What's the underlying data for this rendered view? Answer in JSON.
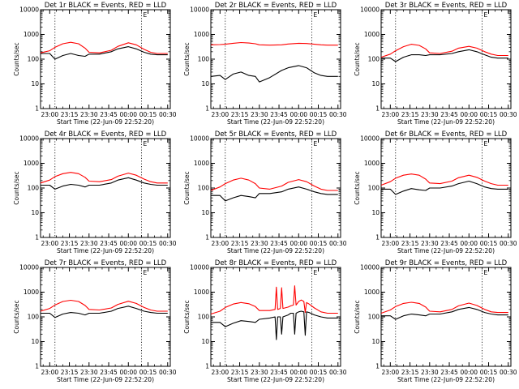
{
  "figure": {
    "common": {
      "xlabel": "Start Time (22-Jun-09 22:52:20)",
      "ylabel": "Counts/sec",
      "x_tick_labels": [
        "23:00",
        "23:15",
        "23:30",
        "23:45",
        "00:00",
        "00:15",
        "00:30"
      ],
      "y_tick_labels": [
        "1",
        "10",
        "100",
        "1000",
        "10000"
      ],
      "marker_label": "E",
      "colors": {
        "events": "#000000",
        "lld": "#ff0000",
        "background": "#ffffff",
        "axes": "#000000"
      }
    }
  },
  "chart_data": [
    {
      "type": "line",
      "title": "Det 1r BLACK = Events, RED = LLD",
      "xlabel": "Start Time (22-Jun-09 22:52:20)",
      "ylabel": "Counts/sec",
      "x_minutes_from_2300": [
        -7,
        0,
        4,
        10,
        16,
        22,
        27,
        30,
        38,
        47,
        52,
        60,
        66,
        72,
        77,
        82,
        90
      ],
      "xlim_minutes_from_2300": [
        -7,
        92
      ],
      "ylim": [
        1,
        10000
      ],
      "y_scale": "log",
      "vertical_markers_minutes_from_2300": [
        4,
        70
      ],
      "series": [
        {
          "name": "Events",
          "color": "#000000",
          "y": [
            170,
            170,
            100,
            140,
            170,
            140,
            130,
            160,
            160,
            200,
            260,
            320,
            260,
            190,
            160,
            150,
            150
          ]
        },
        {
          "name": "LLD",
          "color": "#ff0000",
          "y": [
            180,
            220,
            300,
            420,
            480,
            420,
            280,
            190,
            180,
            230,
            330,
            460,
            380,
            250,
            190,
            170,
            170
          ]
        }
      ]
    },
    {
      "type": "line",
      "title": "Det 2r BLACK = Events, RED = LLD",
      "xlabel": "Start Time (22-Jun-09 22:52:20)",
      "ylabel": "Counts/sec",
      "x_minutes_from_2300": [
        -7,
        0,
        4,
        10,
        16,
        22,
        27,
        30,
        38,
        47,
        52,
        60,
        66,
        72,
        77,
        82,
        90
      ],
      "xlim_minutes_from_2300": [
        -7,
        92
      ],
      "ylim": [
        1,
        10000
      ],
      "y_scale": "log",
      "vertical_markers_minutes_from_2300": [
        4,
        70
      ],
      "series": [
        {
          "name": "Events",
          "color": "#000000",
          "y": [
            20,
            22,
            15,
            25,
            30,
            22,
            20,
            12,
            18,
            35,
            45,
            55,
            45,
            28,
            22,
            20,
            20
          ]
        },
        {
          "name": "LLD",
          "color": "#ff0000",
          "y": [
            380,
            390,
            400,
            440,
            470,
            450,
            420,
            380,
            370,
            380,
            410,
            440,
            430,
            400,
            380,
            370,
            370
          ]
        }
      ]
    },
    {
      "type": "line",
      "title": "Det 3r BLACK = Events, RED = LLD",
      "xlabel": "Start Time (22-Jun-09 22:52:20)",
      "ylabel": "Counts/sec",
      "x_minutes_from_2300": [
        -7,
        0,
        4,
        10,
        16,
        22,
        27,
        30,
        38,
        47,
        52,
        60,
        66,
        72,
        77,
        82,
        90
      ],
      "xlim_minutes_from_2300": [
        -7,
        92
      ],
      "ylim": [
        1,
        10000
      ],
      "y_scale": "log",
      "vertical_markers_minutes_from_2300": [
        4,
        70
      ],
      "series": [
        {
          "name": "Events",
          "color": "#000000",
          "y": [
            110,
            110,
            80,
            120,
            150,
            150,
            140,
            150,
            150,
            170,
            200,
            240,
            200,
            150,
            120,
            110,
            110
          ]
        },
        {
          "name": "LLD",
          "color": "#ff0000",
          "y": [
            120,
            160,
            220,
            320,
            400,
            360,
            260,
            180,
            170,
            210,
            280,
            330,
            280,
            200,
            160,
            140,
            140
          ]
        }
      ]
    },
    {
      "type": "line",
      "title": "Det 4r BLACK = Events, RED = LLD",
      "xlabel": "Start Time (22-Jun-09 22:52:20)",
      "ylabel": "Counts/sec",
      "x_minutes_from_2300": [
        -7,
        0,
        4,
        10,
        16,
        22,
        27,
        30,
        38,
        47,
        52,
        60,
        66,
        72,
        77,
        82,
        90
      ],
      "xlim_minutes_from_2300": [
        -7,
        92
      ],
      "ylim": [
        1,
        10000
      ],
      "y_scale": "log",
      "vertical_markers_minutes_from_2300": [
        4,
        70
      ],
      "series": [
        {
          "name": "Events",
          "color": "#000000",
          "y": [
            130,
            130,
            90,
            120,
            140,
            130,
            110,
            130,
            130,
            160,
            210,
            260,
            210,
            160,
            140,
            130,
            130
          ]
        },
        {
          "name": "LLD",
          "color": "#ff0000",
          "y": [
            160,
            210,
            290,
            380,
            430,
            380,
            270,
            190,
            180,
            220,
            300,
            400,
            330,
            230,
            180,
            160,
            160
          ]
        }
      ]
    },
    {
      "type": "line",
      "title": "Det 5r BLACK = Events, RED = LLD",
      "xlabel": "Start Time (22-Jun-09 22:52:20)",
      "ylabel": "Counts/sec",
      "x_minutes_from_2300": [
        -7,
        0,
        4,
        10,
        16,
        22,
        27,
        30,
        38,
        47,
        52,
        60,
        66,
        72,
        77,
        82,
        90
      ],
      "xlim_minutes_from_2300": [
        -7,
        92
      ],
      "ylim": [
        1,
        10000
      ],
      "y_scale": "log",
      "vertical_markers_minutes_from_2300": [
        4,
        70
      ],
      "series": [
        {
          "name": "Events",
          "color": "#000000",
          "y": [
            50,
            50,
            30,
            40,
            50,
            45,
            40,
            60,
            60,
            70,
            90,
            110,
            90,
            70,
            60,
            55,
            55
          ]
        },
        {
          "name": "LLD",
          "color": "#ff0000",
          "y": [
            80,
            110,
            150,
            210,
            250,
            210,
            150,
            100,
            90,
            120,
            170,
            220,
            180,
            120,
            90,
            80,
            80
          ]
        }
      ]
    },
    {
      "type": "line",
      "title": "Det 6r BLACK = Events, RED = LLD",
      "xlabel": "Start Time (22-Jun-09 22:52:20)",
      "ylabel": "Counts/sec",
      "x_minutes_from_2300": [
        -7,
        0,
        4,
        10,
        16,
        22,
        27,
        30,
        38,
        47,
        52,
        60,
        66,
        72,
        77,
        82,
        90
      ],
      "xlim_minutes_from_2300": [
        -7,
        92
      ],
      "ylim": [
        1,
        10000
      ],
      "y_scale": "log",
      "vertical_markers_minutes_from_2300": [
        4,
        70
      ],
      "series": [
        {
          "name": "Events",
          "color": "#000000",
          "y": [
            90,
            90,
            55,
            75,
            95,
            85,
            80,
            100,
            100,
            120,
            150,
            190,
            150,
            110,
            95,
            90,
            90
          ]
        },
        {
          "name": "LLD",
          "color": "#ff0000",
          "y": [
            130,
            180,
            250,
            330,
            370,
            330,
            230,
            160,
            150,
            190,
            260,
            330,
            270,
            190,
            150,
            130,
            130
          ]
        }
      ]
    },
    {
      "type": "line",
      "title": "Det 7r BLACK = Events, RED = LLD",
      "xlabel": "Start Time (22-Jun-09 22:52:20)",
      "ylabel": "Counts/sec",
      "x_minutes_from_2300": [
        -7,
        0,
        4,
        10,
        16,
        22,
        27,
        30,
        38,
        47,
        52,
        60,
        66,
        72,
        77,
        82,
        90
      ],
      "xlim_minutes_from_2300": [
        -7,
        92
      ],
      "ylim": [
        1,
        10000
      ],
      "y_scale": "log",
      "vertical_markers_minutes_from_2300": [
        4,
        70
      ],
      "series": [
        {
          "name": "Events",
          "color": "#000000",
          "y": [
            140,
            140,
            95,
            130,
            150,
            140,
            120,
            140,
            140,
            170,
            220,
            270,
            220,
            170,
            150,
            140,
            140
          ]
        },
        {
          "name": "LLD",
          "color": "#ff0000",
          "y": [
            170,
            220,
            300,
            420,
            470,
            420,
            290,
            200,
            190,
            230,
            320,
            430,
            350,
            240,
            190,
            170,
            170
          ]
        }
      ]
    },
    {
      "type": "line",
      "title": "Det 8r BLACK = Events, RED = LLD",
      "xlabel": "Start Time (22-Jun-09 22:52:20)",
      "ylabel": "Counts/sec",
      "x_minutes_from_2300": [
        -7,
        0,
        4,
        10,
        16,
        22,
        27,
        30,
        38,
        42,
        43,
        44,
        46,
        47,
        48,
        52,
        54,
        56,
        57,
        58,
        60,
        62,
        64,
        65,
        66,
        68,
        72,
        77,
        82,
        90
      ],
      "xlim_minutes_from_2300": [
        -7,
        92
      ],
      "ylim": [
        1,
        10000
      ],
      "y_scale": "log",
      "vertical_markers_minutes_from_2300": [
        4,
        70
      ],
      "series": [
        {
          "name": "Events",
          "color": "#000000",
          "y": [
            60,
            60,
            40,
            55,
            70,
            65,
            60,
            80,
            90,
            100,
            12,
            100,
            100,
            20,
            100,
            120,
            140,
            140,
            20,
            140,
            160,
            170,
            160,
            18,
            160,
            150,
            120,
            100,
            90,
            90
          ]
        },
        {
          "name": "LLD",
          "color": "#ff0000",
          "y": [
            130,
            170,
            240,
            330,
            380,
            340,
            260,
            180,
            180,
            200,
            1600,
            200,
            220,
            1500,
            220,
            250,
            280,
            300,
            1800,
            300,
            420,
            480,
            420,
            150,
            380,
            330,
            230,
            160,
            140,
            140
          ]
        }
      ]
    },
    {
      "type": "line",
      "title": "Det 9r BLACK = Events, RED = LLD",
      "xlabel": "Start Time (22-Jun-09 22:52:20)",
      "ylabel": "Counts/sec",
      "x_minutes_from_2300": [
        -7,
        0,
        4,
        10,
        16,
        22,
        27,
        30,
        38,
        47,
        52,
        60,
        66,
        72,
        77,
        82,
        90
      ],
      "xlim_minutes_from_2300": [
        -7,
        92
      ],
      "ylim": [
        1,
        10000
      ],
      "y_scale": "log",
      "vertical_markers_minutes_from_2300": [
        4,
        70
      ],
      "series": [
        {
          "name": "Events",
          "color": "#000000",
          "y": [
            110,
            110,
            80,
            110,
            130,
            120,
            110,
            130,
            130,
            160,
            200,
            240,
            200,
            150,
            130,
            120,
            120
          ]
        },
        {
          "name": "LLD",
          "color": "#ff0000",
          "y": [
            140,
            190,
            260,
            350,
            390,
            350,
            250,
            170,
            160,
            200,
            280,
            360,
            290,
            200,
            160,
            150,
            150
          ]
        }
      ]
    }
  ]
}
